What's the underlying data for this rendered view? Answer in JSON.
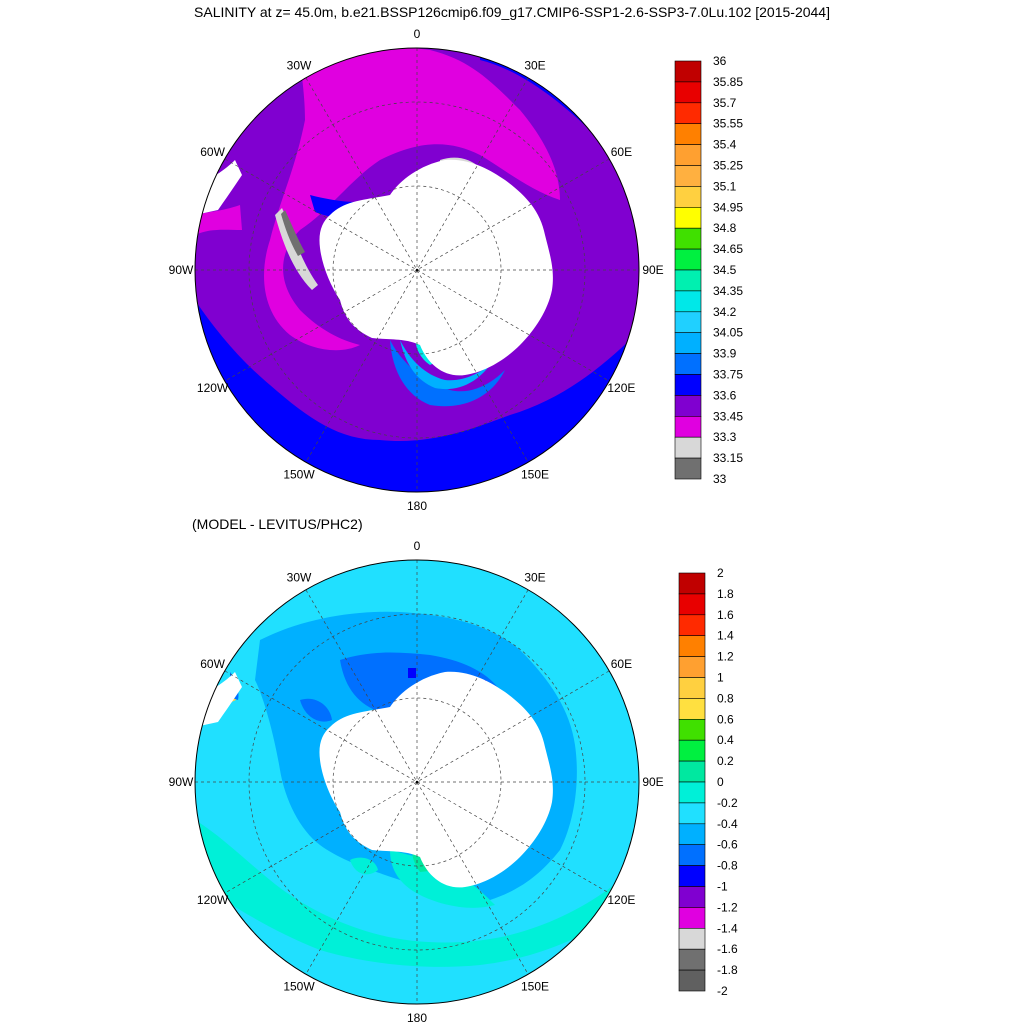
{
  "header": {
    "title": "SALINITY at z=  45.0m, b.e21.BSSP126cmip6.f09_g17.CMIP6-SSP1-2.6-SSP3-7.0Lu.102 [2015-2044]",
    "subtitle": "(MODEL - LEVITUS/PHC2)"
  },
  "maps": [
    {
      "lon_labels": [
        "0",
        "30E",
        "60E",
        "90E",
        "120E",
        "150E",
        "180",
        "150W",
        "120W",
        "90W",
        "60W",
        "30W"
      ],
      "colorbar": {
        "labels": [
          "36",
          "35.85",
          "35.7",
          "35.55",
          "35.4",
          "35.25",
          "35.1",
          "34.95",
          "34.8",
          "34.65",
          "34.5",
          "34.35",
          "34.2",
          "34.05",
          "33.9",
          "33.75",
          "33.6",
          "33.45",
          "33.3",
          "33.15",
          "33"
        ],
        "colors": [
          "#c00000",
          "#e80000",
          "#ff2a00",
          "#ff8000",
          "#ffa030",
          "#ffb040",
          "#ffd040",
          "#ffff00",
          "#40e000",
          "#00f040",
          "#00f0b0",
          "#00e8e8",
          "#20d0ff",
          "#00b0ff",
          "#0070ff",
          "#0000ff",
          "#8000d0",
          "#e000e0",
          "#d8d8d8",
          "#707070"
        ]
      }
    },
    {
      "lon_labels": [
        "0",
        "30E",
        "60E",
        "90E",
        "120E",
        "150E",
        "180",
        "150W",
        "120W",
        "90W",
        "60W",
        "30W"
      ],
      "colorbar": {
        "labels": [
          "2",
          "1.8",
          "1.6",
          "1.4",
          "1.2",
          "1",
          "0.8",
          "0.6",
          "0.4",
          "0.2",
          "0",
          "-0.2",
          "-0.4",
          "-0.6",
          "-0.8",
          "-1",
          "-1.2",
          "-1.4",
          "-1.6",
          "-1.8",
          "-2"
        ],
        "colors": [
          "#c00000",
          "#e80000",
          "#ff2a00",
          "#ff8000",
          "#ffa030",
          "#ffd040",
          "#ffe040",
          "#40e000",
          "#00f040",
          "#00e8a0",
          "#00f0d8",
          "#20e0ff",
          "#00b0ff",
          "#0070ff",
          "#0000ff",
          "#8000d0",
          "#e000e0",
          "#d8d8d8",
          "#707070",
          "#606060"
        ]
      }
    }
  ],
  "colors": {
    "salinity_background": "#8000d0",
    "salinity_high": "#e000e0",
    "salinity_low": "#0000ff",
    "diff_background": "#20e0ff",
    "diff_mid": "#00b0ff",
    "diff_low": "#0070ff",
    "land": "#ffffff"
  }
}
